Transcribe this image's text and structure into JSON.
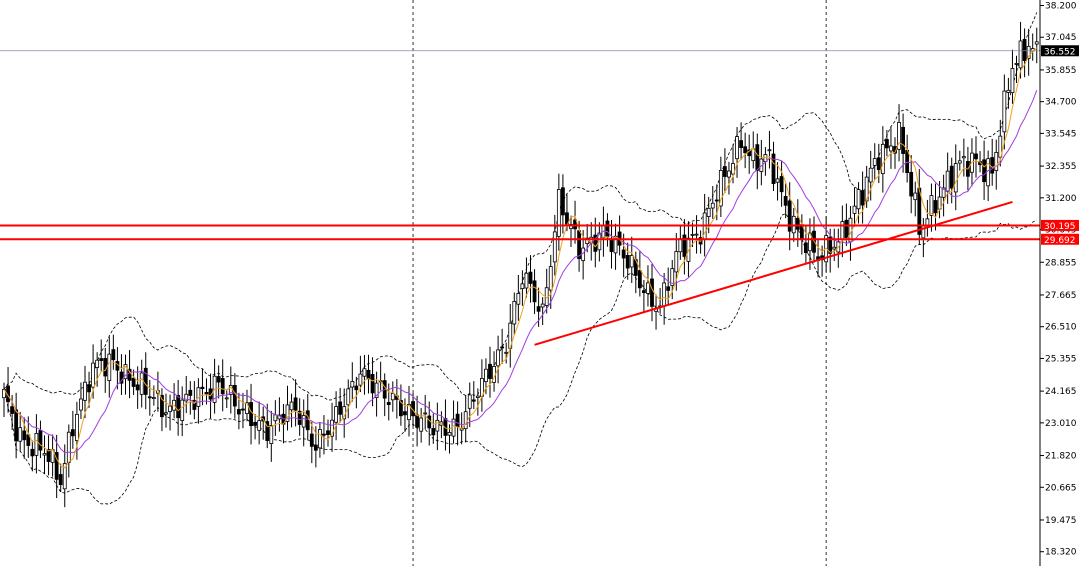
{
  "chart_data": {
    "type": "candlestick",
    "y_axis": {
      "ticks": [
        "38.200",
        "37.045",
        "35.855",
        "34.700",
        "33.545",
        "32.355",
        "31.200",
        "30.045",
        "28.855",
        "27.665",
        "26.510",
        "25.355",
        "24.165",
        "23.010",
        "21.820",
        "20.665",
        "19.475",
        "18.320"
      ],
      "range": [
        17.8,
        38.4
      ]
    },
    "grid": false,
    "current_price": {
      "value": 36.552,
      "label": "36.552",
      "color": "#4b5a6a"
    },
    "horizontal_levels": [
      {
        "value": 30.195,
        "label": "30.195",
        "color": "#ff0000"
      },
      {
        "value": 29.692,
        "label": "29.692",
        "color": "#ff0000"
      }
    ],
    "trendline": {
      "color": "#ff0000",
      "from": {
        "bar": 131,
        "price": 25.85
      },
      "to": {
        "bar": 249,
        "price": 31.05
      }
    },
    "period_separators": [
      101,
      203
    ],
    "colors": {
      "up_candle": "#ffffff",
      "down_candle": "#000000",
      "wick": "#000000",
      "ma_fast": "#f0a020",
      "ma_slow": "#a040e0",
      "bands": "#000000"
    },
    "indicators": [
      "moving_average_fast",
      "moving_average_slow",
      "bollinger_bands"
    ],
    "anchors": [
      [
        0,
        23.9
      ],
      [
        4,
        22.6
      ],
      [
        10,
        21.9
      ],
      [
        14,
        20.9
      ],
      [
        17,
        23.1
      ],
      [
        22,
        24.9
      ],
      [
        27,
        25.3
      ],
      [
        33,
        24.3
      ],
      [
        40,
        23.6
      ],
      [
        47,
        23.8
      ],
      [
        53,
        24.6
      ],
      [
        58,
        23.4
      ],
      [
        65,
        22.9
      ],
      [
        72,
        23.5
      ],
      [
        77,
        22.3
      ],
      [
        82,
        23.1
      ],
      [
        88,
        25.0
      ],
      [
        94,
        23.9
      ],
      [
        100,
        23.5
      ],
      [
        106,
        22.7
      ],
      [
        112,
        23.0
      ],
      [
        118,
        24.3
      ],
      [
        124,
        26.1
      ],
      [
        128,
        28.3
      ],
      [
        133,
        27.0
      ],
      [
        137,
        31.2
      ],
      [
        142,
        29.2
      ],
      [
        148,
        30.1
      ],
      [
        153,
        29.0
      ],
      [
        158,
        28.0
      ],
      [
        162,
        27.2
      ],
      [
        167,
        29.4
      ],
      [
        172,
        30.1
      ],
      [
        178,
        31.9
      ],
      [
        182,
        33.4
      ],
      [
        185,
        32.6
      ],
      [
        189,
        32.5
      ],
      [
        193,
        30.9
      ],
      [
        197,
        29.8
      ],
      [
        201,
        28.9
      ],
      [
        207,
        30.0
      ],
      [
        212,
        31.3
      ],
      [
        216,
        32.8
      ],
      [
        221,
        33.5
      ],
      [
        226,
        30.0
      ],
      [
        230,
        31.2
      ],
      [
        235,
        32.2
      ],
      [
        240,
        32.6
      ],
      [
        244,
        32.2
      ],
      [
        249,
        35.9
      ],
      [
        253,
        36.9
      ],
      [
        255,
        36.6
      ]
    ]
  }
}
